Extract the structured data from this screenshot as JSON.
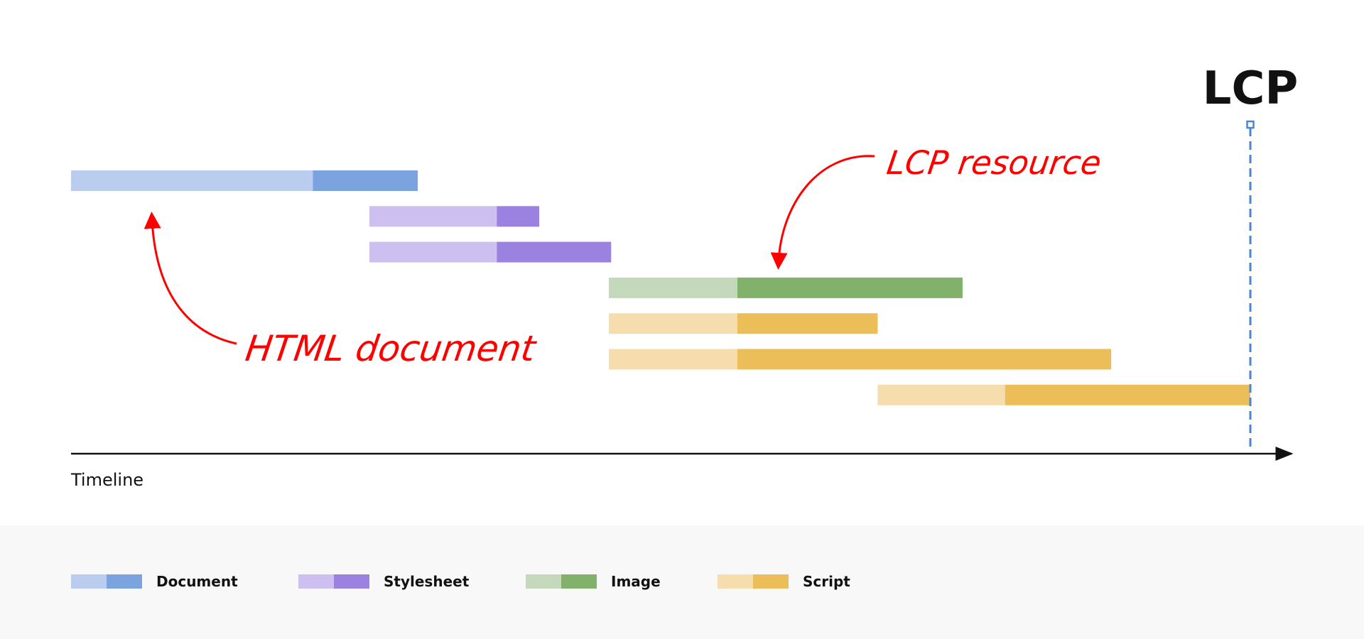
{
  "chart_data": {
    "type": "bar",
    "subtype": "waterfall",
    "xlabel": "Timeline",
    "xlim": [
      0,
      103.5
    ],
    "marker": {
      "label": "LCP",
      "x": 100,
      "color": "#4a86d0"
    },
    "bars": [
      {
        "type": "Document",
        "start": 0,
        "split": 20.5,
        "end": 29.4
      },
      {
        "type": "Stylesheet",
        "start": 25.3,
        "split": 36.1,
        "end": 39.7
      },
      {
        "type": "Stylesheet",
        "start": 25.3,
        "split": 36.1,
        "end": 45.8
      },
      {
        "type": "Image",
        "start": 45.6,
        "split": 56.5,
        "end": 75.6
      },
      {
        "type": "Script",
        "start": 45.6,
        "split": 56.5,
        "end": 68.4
      },
      {
        "type": "Script",
        "start": 45.6,
        "split": 56.5,
        "end": 88.2
      },
      {
        "type": "Script",
        "start": 68.4,
        "split": 79.2,
        "end": 100
      }
    ],
    "annotations": [
      {
        "text": "HTML document",
        "target_bar": 0,
        "color": "#ff0000"
      },
      {
        "text": "LCP resource",
        "target_bar": 3,
        "color": "#ff0000"
      }
    ],
    "legend": {
      "placement": "bottom",
      "entries": [
        {
          "label": "Document",
          "light": "#bacdef",
          "dark": "#7ba3e0"
        },
        {
          "label": "Stylesheet",
          "light": "#cdc0f0",
          "dark": "#9b82e0"
        },
        {
          "label": "Image",
          "light": "#c4d9bb",
          "dark": "#82b16c"
        },
        {
          "label": "Script",
          "light": "#f6ddae",
          "dark": "#ecbe5a"
        }
      ]
    }
  }
}
